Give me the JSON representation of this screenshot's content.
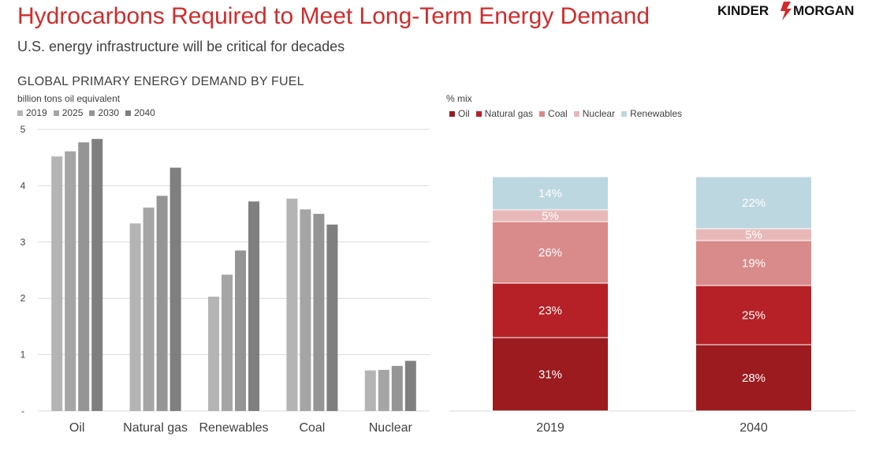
{
  "header": {
    "title": "Hydrocarbons Required to Meet Long-Term Energy Demand",
    "subtitle": "U.S. energy infrastructure will be critical for decades",
    "logo_text": "KINDER MORGAN"
  },
  "colors": {
    "title_red": "#d12b2b",
    "grid": "#d9d9d9",
    "text": "#404040"
  },
  "chart_data": [
    {
      "type": "bar",
      "title": "GLOBAL PRIMARY ENERGY DEMAND BY FUEL",
      "ylabel": "billion tons oil equivalent",
      "categories": [
        "Oil",
        "Natural gas",
        "Renewables",
        "Coal",
        "Nuclear"
      ],
      "series": [
        {
          "name": "2019",
          "color": "#b4b4b4",
          "values": [
            4.52,
            3.33,
            2.03,
            3.77,
            0.72
          ]
        },
        {
          "name": "2025",
          "color": "#a5a5a5",
          "values": [
            4.61,
            3.61,
            2.42,
            3.58,
            0.73
          ]
        },
        {
          "name": "2030",
          "color": "#959595",
          "values": [
            4.77,
            3.82,
            2.85,
            3.5,
            0.8
          ]
        },
        {
          "name": "2040",
          "color": "#7f7f7f",
          "values": [
            4.83,
            4.32,
            3.72,
            3.31,
            0.89
          ]
        }
      ],
      "ylim": [
        0,
        5
      ],
      "yticks": [
        "-",
        "1",
        "2",
        "3",
        "4",
        "5"
      ],
      "grid": true,
      "legend": "top-left"
    },
    {
      "type": "stacked-bar",
      "ylabel": "% mix",
      "categories": [
        "2019",
        "2040"
      ],
      "series": [
        {
          "name": "Oil",
          "color": "#9b1b1e",
          "values": [
            31,
            28
          ],
          "labels": [
            "31%",
            "28%"
          ]
        },
        {
          "name": "Natural gas",
          "color": "#b52126",
          "values": [
            23,
            25
          ],
          "labels": [
            "23%",
            "25%"
          ]
        },
        {
          "name": "Coal",
          "color": "#d98a8a",
          "values": [
            26,
            19
          ],
          "labels": [
            "26%",
            "19%"
          ]
        },
        {
          "name": "Nuclear",
          "color": "#e8b8b8",
          "values": [
            5,
            5
          ],
          "labels": [
            "5%",
            "5%"
          ]
        },
        {
          "name": "Renewables",
          "color": "#bdd7e0",
          "values": [
            14,
            22
          ],
          "labels": [
            "14%",
            "22%"
          ]
        }
      ],
      "grid": false,
      "legend": "top-left"
    }
  ]
}
